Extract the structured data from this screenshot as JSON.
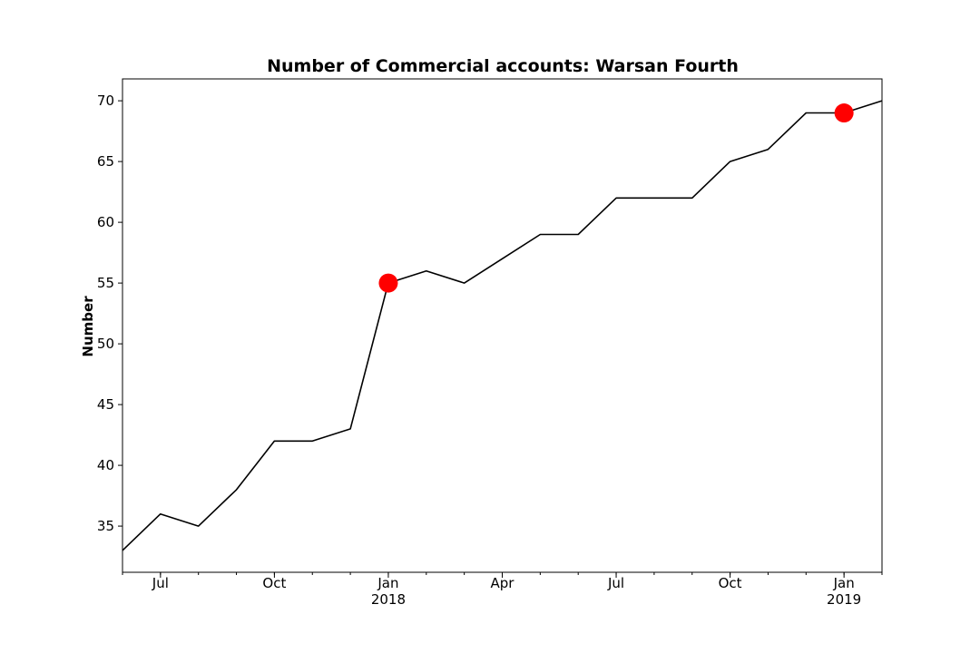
{
  "chart_data": {
    "type": "line",
    "title": "Number of Commercial accounts: Warsan Fourth",
    "xlabel": "",
    "ylabel": "Number",
    "x": [
      "2017-06",
      "2017-07",
      "2017-08",
      "2017-09",
      "2017-10",
      "2017-11",
      "2017-12",
      "2018-01",
      "2018-02",
      "2018-03",
      "2018-04",
      "2018-05",
      "2018-06",
      "2018-07",
      "2018-08",
      "2018-09",
      "2018-10",
      "2018-11",
      "2018-12",
      "2019-01",
      "2019-02"
    ],
    "series": [
      {
        "values": [
          33,
          36,
          35,
          38,
          42,
          42,
          43,
          55,
          56,
          55,
          57,
          59,
          59,
          62,
          62,
          62,
          65,
          66,
          69,
          69,
          70
        ],
        "color": "#000000"
      }
    ],
    "highlighted_points": [
      {
        "x": "2018-01",
        "y": 55,
        "color": "#ff0000"
      },
      {
        "x": "2019-01",
        "y": 69,
        "color": "#ff0000"
      }
    ],
    "xlim": [
      "2017-06",
      "2019-02"
    ],
    "ylim": [
      31.2,
      71.8
    ],
    "yticks": [
      35,
      40,
      45,
      50,
      55,
      60,
      65,
      70
    ],
    "xticks": [
      {
        "x": "2017-07",
        "label": "Jul",
        "sublabel": ""
      },
      {
        "x": "2017-10",
        "label": "Oct",
        "sublabel": ""
      },
      {
        "x": "2018-01",
        "label": "Jan",
        "sublabel": "2018"
      },
      {
        "x": "2018-04",
        "label": "Apr",
        "sublabel": ""
      },
      {
        "x": "2018-07",
        "label": "Jul",
        "sublabel": ""
      },
      {
        "x": "2018-10",
        "label": "Oct",
        "sublabel": ""
      },
      {
        "x": "2019-01",
        "label": "Jan",
        "sublabel": "2019"
      }
    ],
    "grid": false,
    "legend": "none"
  }
}
